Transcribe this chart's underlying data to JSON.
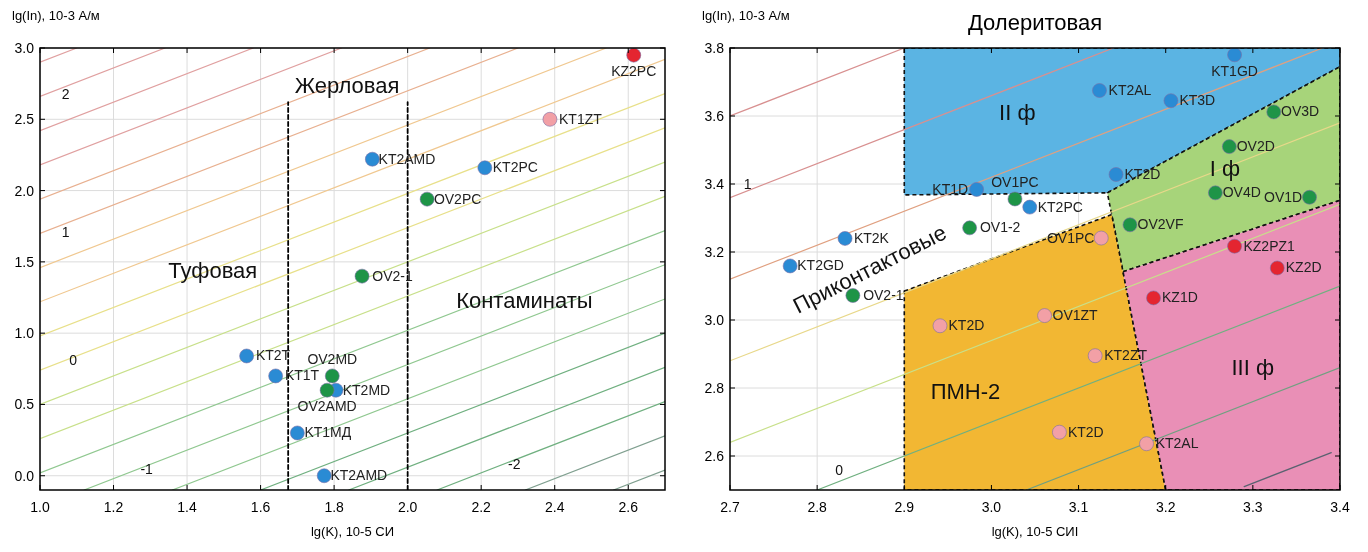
{
  "chart_data": [
    {
      "type": "scatter",
      "xlabel": "lg(K), 10-5 СИ",
      "ylabel": "lg(In), 10-3 А/м",
      "xlim": [
        1.0,
        2.7
      ],
      "ylim": [
        -0.1,
        3.0
      ],
      "xticks": [
        {
          "value": 1,
          "label": "1.0"
        },
        1.2,
        1.4,
        1.6,
        1.8,
        {
          "value": 2,
          "label": "2.0"
        },
        2.2,
        2.4,
        2.6
      ],
      "yticks": [
        {
          "value": 0,
          "label": "0.0"
        },
        0.5,
        {
          "value": 1,
          "label": "1.0"
        },
        1.5,
        {
          "value": 2,
          "label": "2.0"
        },
        2.5,
        {
          "value": 3,
          "label": "3.0"
        }
      ],
      "grid": true,
      "series": [
        {
          "type": "line",
          "color": "#e0a0a0",
          "x": [
            1.0,
            1.1
          ],
          "values": [
            2.9,
            3.0
          ]
        },
        {
          "type": "line",
          "color": "#e0a0a0",
          "x": [
            1.0,
            1.34
          ],
          "values": [
            2.66,
            3.0
          ]
        },
        {
          "type": "line",
          "color": "#e0a0a0",
          "x": [
            1.0,
            1.58
          ],
          "values": [
            2.42,
            3.0
          ]
        },
        {
          "type": "line",
          "color": "#e0a0a0",
          "x": [
            1.0,
            1.82
          ],
          "values": [
            2.18,
            3.0
          ]
        },
        {
          "type": "line",
          "color": "#e8b090",
          "x": [
            1.0,
            2.06
          ],
          "values": [
            1.94,
            3.0
          ]
        },
        {
          "type": "line",
          "color": "#e8b090",
          "x": [
            1.0,
            2.3
          ],
          "values": [
            1.7,
            3.0
          ]
        },
        {
          "type": "line",
          "color": "#f0c890",
          "x": [
            1.0,
            2.54
          ],
          "values": [
            1.46,
            3.0
          ]
        },
        {
          "type": "line",
          "color": "#f0c890",
          "x": [
            1.0,
            2.7
          ],
          "values": [
            1.22,
            2.92
          ]
        },
        {
          "type": "line",
          "color": "#e8e08a",
          "x": [
            1.0,
            2.7
          ],
          "values": [
            0.98,
            2.68
          ]
        },
        {
          "type": "line",
          "color": "#e8e08a",
          "x": [
            1.0,
            2.7
          ],
          "values": [
            0.74,
            2.44
          ]
        },
        {
          "type": "line",
          "color": "#c8e08a",
          "x": [
            1.0,
            2.7
          ],
          "values": [
            0.5,
            2.2
          ]
        },
        {
          "type": "line",
          "color": "#c8e08a",
          "x": [
            1.0,
            2.7
          ],
          "values": [
            0.26,
            1.96
          ]
        },
        {
          "type": "line",
          "color": "#90c890",
          "x": [
            1.0,
            2.7
          ],
          "values": [
            0.02,
            1.72
          ]
        },
        {
          "type": "line",
          "color": "#90c890",
          "x": [
            1.12,
            2.7
          ],
          "values": [
            -0.1,
            1.48
          ]
        },
        {
          "type": "line",
          "color": "#90c890",
          "x": [
            1.36,
            2.7
          ],
          "values": [
            -0.1,
            1.24
          ]
        },
        {
          "type": "line",
          "color": "#70b080",
          "x": [
            1.6,
            2.7
          ],
          "values": [
            -0.1,
            1.0
          ]
        },
        {
          "type": "line",
          "color": "#70b080",
          "x": [
            1.84,
            2.7
          ],
          "values": [
            -0.1,
            0.76
          ]
        },
        {
          "type": "line",
          "color": "#70b080",
          "x": [
            2.08,
            2.7
          ],
          "values": [
            -0.1,
            0.52
          ]
        },
        {
          "type": "line",
          "color": "#80a090",
          "x": [
            2.32,
            2.7
          ],
          "values": [
            -0.1,
            0.28
          ]
        },
        {
          "type": "line",
          "color": "#80a090",
          "x": [
            2.56,
            2.7
          ],
          "values": [
            -0.1,
            0.04
          ]
        },
        {
          "type": "line",
          "color": "#000000",
          "line_style": "dashed",
          "x": [
            1.675,
            1.675
          ],
          "values": [
            -0.1,
            2.62
          ]
        },
        {
          "type": "line",
          "color": "#000000",
          "line_style": "dashed",
          "x": [
            2.0,
            2.0
          ],
          "values": [
            -0.1,
            2.62
          ]
        },
        {
          "type": "scatter",
          "marker": "circle",
          "color": "#2a8bd4",
          "x": [
            1.904,
            2.21,
            1.562,
            1.641,
            1.805,
            1.7,
            1.773
          ],
          "values": [
            2.22,
            2.16,
            0.84,
            0.7,
            0.6,
            0.3,
            0.0
          ],
          "value_labels": [
            "KT2AMD",
            "KT2PC",
            "KT2T",
            "KT1T",
            "KT2MD",
            "KT1МД",
            "KT2AMD"
          ]
        },
        {
          "type": "scatter",
          "marker": "circle",
          "color": "#1e9447",
          "x": [
            2.053,
            1.876,
            1.795,
            1.781
          ],
          "values": [
            1.94,
            1.4,
            0.7,
            0.6
          ],
          "value_labels": [
            "OV2PC",
            "OV2-1",
            "OV2MD",
            "OV2AMD"
          ]
        },
        {
          "type": "scatter",
          "marker": "circle",
          "color": "#f2a0a6",
          "x": [
            2.387
          ],
          "values": [
            2.5
          ],
          "value_labels": [
            "KT1ZT"
          ]
        },
        {
          "type": "scatter",
          "marker": "circle",
          "color": "#e42530",
          "x": [
            2.615
          ],
          "values": [
            2.95
          ],
          "value_labels": [
            "KZ2PC"
          ]
        }
      ],
      "annotations": [
        {
          "text": "Жерловая",
          "x": 1.835,
          "y": 2.74
        },
        {
          "text": "Туфовая",
          "x": 1.47,
          "y": 1.44
        },
        "Контаминаты",
        "2",
        "1",
        {
          "text": "0",
          "x": 1.09,
          "y": 0.81
        },
        {
          "text": "-1",
          "x": 1.29,
          "y": 0.05
        },
        {
          "text": "-2",
          "x": 2.29,
          "y": 0.08
        }
      ]
    },
    {
      "type": "scatter",
      "title": "Долеритовая",
      "xlabel": "lg(K), 10-5 СИI",
      "ylabel": "lg(In), 10-3 А/м",
      "xlim": [
        2.7,
        3.4
      ],
      "ylim": [
        2.5,
        3.8
      ],
      "xticks": [
        2.7,
        2.8,
        2.9,
        {
          "value": 3,
          "label": "3.0"
        },
        3.1,
        3.2,
        3.3,
        3.4
      ],
      "yticks": [
        2.6,
        2.8,
        {
          "value": 3,
          "label": "3.0"
        },
        3.2,
        3.4,
        3.6,
        3.8
      ],
      "grid": true,
      "series": [
        {
          "type": "area",
          "color": "#5bb4e3",
          "line_style": "dashed",
          "x": [
            2.9,
            3.4,
            3.4,
            3.133,
            2.9
          ],
          "values": [
            3.8,
            3.8,
            3.745,
            3.374,
            3.368
          ]
        },
        {
          "type": "area",
          "color": "#a7d47a",
          "line_style": "dashed",
          "x": [
            3.133,
            3.4,
            3.4,
            3.151,
            3.138
          ],
          "values": [
            3.374,
            3.745,
            3.352,
            3.142,
            3.31
          ]
        },
        {
          "type": "area",
          "color": "#f2b733",
          "line_style": "dashed",
          "x": [
            2.9,
            3.138,
            3.151,
            3.2,
            2.9
          ],
          "values": [
            3.085,
            3.31,
            3.142,
            2.5,
            2.5
          ]
        },
        {
          "type": "area",
          "color": "#e98fb6",
          "line_style": "dashed",
          "x": [
            3.151,
            3.4,
            3.4,
            3.2
          ],
          "values": [
            3.142,
            3.352,
            2.5,
            2.5
          ]
        },
        {
          "type": "line",
          "color": "#d89090",
          "x": [
            2.7,
            2.9
          ],
          "values": [
            3.6,
            3.8
          ]
        },
        {
          "type": "line",
          "color": "#d89090",
          "x": [
            2.7,
            3.14
          ],
          "values": [
            3.36,
            3.8
          ]
        },
        {
          "type": "line",
          "color": "#e0a080",
          "x": [
            2.7,
            3.38
          ],
          "values": [
            3.12,
            3.8
          ]
        },
        {
          "type": "line",
          "color": "#e8d88a",
          "x": [
            2.7,
            3.4
          ],
          "values": [
            2.88,
            3.58
          ]
        },
        {
          "type": "line",
          "color": "#c8e08a",
          "x": [
            2.7,
            3.4
          ],
          "values": [
            2.64,
            3.34
          ]
        },
        {
          "type": "line",
          "color": "#70b080",
          "x": [
            2.8,
            3.4
          ],
          "values": [
            2.5,
            3.1
          ]
        },
        {
          "type": "line",
          "color": "#70a080",
          "x": [
            3.04,
            3.4
          ],
          "values": [
            2.5,
            2.86
          ]
        },
        {
          "type": "line",
          "color": "#5a6270",
          "x": [
            3.29,
            3.39
          ],
          "values": [
            2.51,
            2.61
          ]
        },
        {
          "type": "scatter",
          "marker": "circle",
          "color": "#2a8bd4",
          "x": [
            3.279,
            3.124,
            3.206,
            3.143,
            2.983,
            3.044,
            2.832,
            2.769
          ],
          "values": [
            3.78,
            3.675,
            3.645,
            3.428,
            3.384,
            3.332,
            3.24,
            3.159
          ],
          "value_labels": [
            "KT1GD",
            "KT2AL",
            "KT3D",
            "KT2D",
            "KT1D",
            "KT2PC",
            "KT2K",
            "KT2GD"
          ]
        },
        {
          "type": "scatter",
          "marker": "circle",
          "color": "#1e9447",
          "x": [
            3.324,
            3.273,
            3.257,
            3.365,
            3.027,
            2.975,
            3.159,
            2.841
          ],
          "values": [
            3.612,
            3.51,
            3.374,
            3.361,
            3.356,
            3.271,
            3.28,
            3.072
          ],
          "value_labels": [
            "OV3D",
            "OV2D",
            "OV4D",
            "OV1D",
            "OV1PC",
            "OV1-2",
            "OV2VF",
            "OV2-1"
          ]
        },
        {
          "type": "scatter",
          "marker": "circle",
          "color": "#f2a0a6",
          "x": [
            3.126,
            2.941,
            3.061,
            3.119,
            3.078,
            3.178
          ],
          "values": [
            3.241,
            2.983,
            3.013,
            2.895,
            2.67,
            2.636
          ],
          "value_labels": [
            "OV1PC",
            "KT2D",
            "OV1ZT",
            "KT2ZT",
            "KT2D",
            "KT2AL"
          ]
        },
        {
          "type": "scatter",
          "marker": "circle",
          "color": "#e42530",
          "x": [
            3.279,
            3.328,
            3.186
          ],
          "values": [
            3.217,
            3.153,
            3.065
          ],
          "value_labels": [
            "KZ2PZ1",
            "KZ2D",
            "KZ1D"
          ]
        }
      ],
      "annotations": [
        "II ф",
        {
          "text": "I ф",
          "x": 3.268,
          "y": 3.445
        },
        "III ф",
        "ПМН-2",
        "Приконтактовые",
        "1",
        "0"
      ]
    }
  ]
}
